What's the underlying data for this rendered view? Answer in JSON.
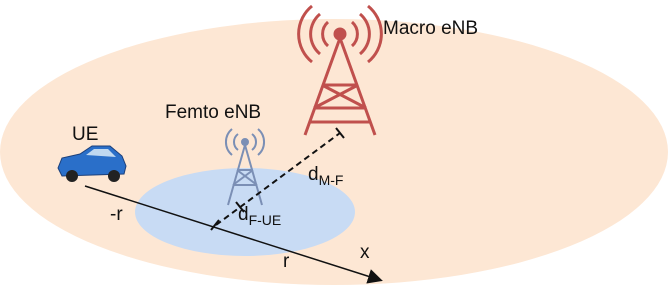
{
  "labels": {
    "macro": "Macro eNB",
    "femto": "Femto eNB",
    "ue": "UE",
    "d_mf": {
      "main": "d",
      "subscript": "M-F"
    },
    "d_fue": {
      "main": "d",
      "subscript": "F-UE"
    },
    "neg_r": "-r",
    "r": "r",
    "x": "x"
  }
}
